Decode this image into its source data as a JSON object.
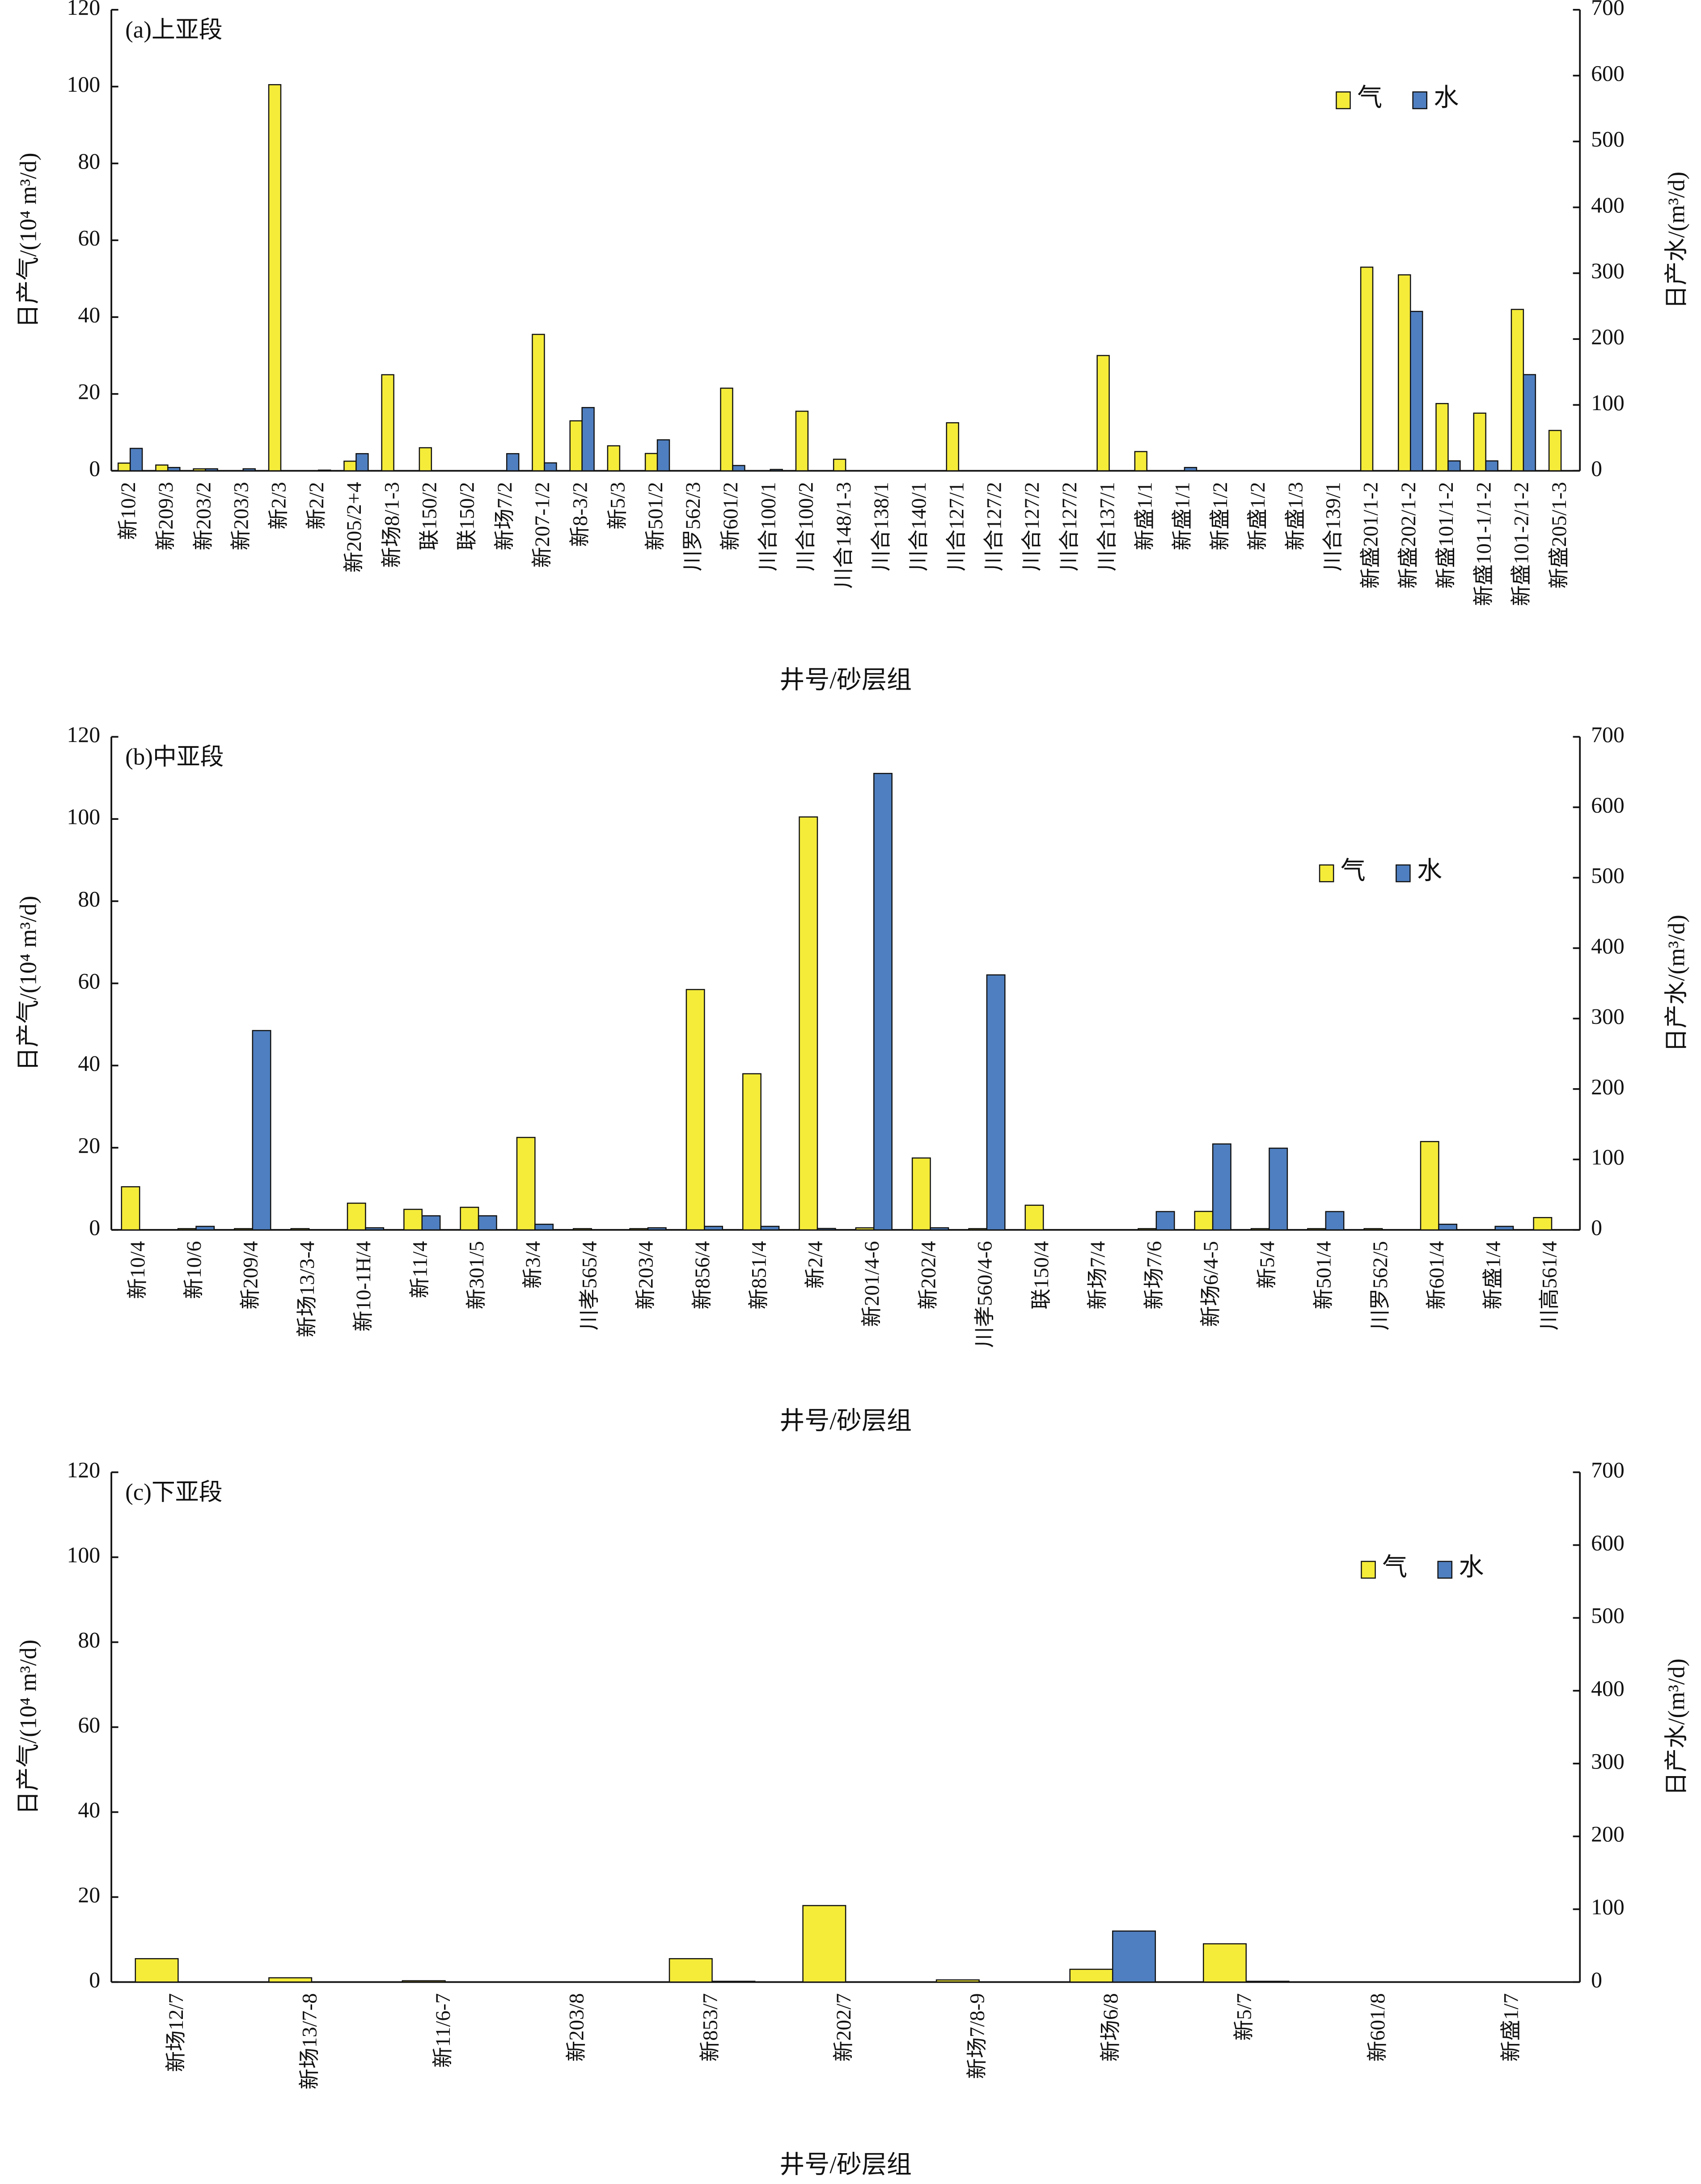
{
  "chart_data": [
    {
      "type": "bar",
      "title": "(a)上亚段",
      "xlabel": "井号/砂层组",
      "ylabel": "日产气/(10⁴ m³/d)",
      "y2label": "日产水/(m³/d)",
      "categories": [
        "新10/2",
        "新209/3",
        "新203/2",
        "新203/3",
        "新2/3",
        "新2/2",
        "新205/2+4",
        "新场8/1-3",
        "联150/2",
        "联150/2",
        "新场7/2",
        "新207-1/2",
        "新8-3/2",
        "新5/3",
        "新501/2",
        "川罗562/3",
        "新601/2",
        "川合100/1",
        "川合100/2",
        "川合148/1-3",
        "川合138/1",
        "川合140/1",
        "川合127/1",
        "川合127/2",
        "川合127/2",
        "川合127/2",
        "川合137/1",
        "新盛1/1",
        "新盛1/1",
        "新盛1/2",
        "新盛1/2",
        "新盛1/3",
        "川合139/1",
        "新盛201/1-2",
        "新盛202/1-2",
        "新盛101/1-2",
        "新盛101-1/1-2",
        "新盛101-2/1-2",
        "新盛205/1-3"
      ],
      "series": [
        {
          "name": "气",
          "color": "#f5ec3a",
          "axis": "y",
          "values": [
            2,
            1.5,
            0.5,
            0,
            100.5,
            0,
            2.5,
            25,
            6,
            0,
            0,
            35.5,
            13,
            6.5,
            4.5,
            0,
            21.5,
            0,
            15.5,
            3,
            0,
            0,
            12.5,
            0,
            0,
            0,
            30,
            5,
            0,
            0,
            0,
            0,
            0,
            53,
            51,
            17.5,
            15,
            42,
            10.5
          ]
        },
        {
          "name": "水",
          "color": "#4f7fc0",
          "axis": "y2",
          "values": [
            34,
            5,
            3,
            3,
            0,
            1,
            26,
            0,
            0,
            0,
            26,
            12,
            96,
            0,
            47,
            0,
            8,
            2,
            0,
            0,
            0,
            0,
            0,
            0,
            0,
            0,
            0,
            0,
            5,
            0,
            0,
            0,
            0,
            0,
            242,
            15,
            15,
            146,
            0
          ]
        }
      ],
      "ylim": [
        0,
        120
      ],
      "yticks": [
        0,
        20,
        40,
        60,
        80,
        100,
        120
      ],
      "y2lim": [
        0,
        700
      ],
      "y2ticks": [
        0,
        100,
        200,
        300,
        400,
        500,
        600,
        700
      ]
    },
    {
      "type": "bar",
      "title": "(b)中亚段",
      "xlabel": "井号/砂层组",
      "ylabel": "日产气/(10⁴ m³/d)",
      "y2label": "日产水/(m³/d)",
      "categories": [
        "新10/4",
        "新10/6",
        "新209/4",
        "新场13/3-4",
        "新10-1H/4",
        "新11/4",
        "新301/5",
        "新3/4",
        "川孝565/4",
        "新203/4",
        "新856/4",
        "新851/4",
        "新2/4",
        "新201/4-6",
        "新202/4",
        "川孝560/4-6",
        "联150/4",
        "新场7/4",
        "新场7/6",
        "新场6/4-5",
        "新5/4",
        "新501/4",
        "川罗562/5",
        "新601/4",
        "新盛1/4",
        "川高561/4"
      ],
      "series": [
        {
          "name": "气",
          "color": "#f5ec3a",
          "axis": "y",
          "values": [
            10.5,
            0.3,
            0.3,
            0.3,
            6.5,
            5,
            5.5,
            22.5,
            0.3,
            0.3,
            58.5,
            38,
            100.5,
            0.5,
            17.5,
            0.3,
            6,
            0,
            0.3,
            4.5,
            0.3,
            0.3,
            0.3,
            21.5,
            0,
            3
          ]
        },
        {
          "name": "水",
          "color": "#4f7fc0",
          "axis": "y2",
          "values": [
            0,
            5,
            283,
            0,
            3,
            20,
            20,
            8,
            0,
            3,
            5,
            5,
            2,
            648,
            3,
            362,
            0,
            0,
            26,
            122,
            116,
            26,
            0,
            8,
            5,
            0
          ]
        }
      ],
      "ylim": [
        0,
        120
      ],
      "yticks": [
        0,
        20,
        40,
        60,
        80,
        100,
        120
      ],
      "y2lim": [
        0,
        700
      ],
      "y2ticks": [
        0,
        100,
        200,
        300,
        400,
        500,
        600,
        700
      ]
    },
    {
      "type": "bar",
      "title": "(c)下亚段",
      "xlabel": "井号/砂层组",
      "ylabel": "日产气/(10⁴ m³/d)",
      "y2label": "日产水/(m³/d)",
      "categories": [
        "新场12/7",
        "新场13/7-8",
        "新11/6-7",
        "新203/8",
        "新853/7",
        "新202/7",
        "新场7/8-9",
        "新场6/8",
        "新5/7",
        "新601/8",
        "新盛1/7"
      ],
      "series": [
        {
          "name": "气",
          "color": "#f5ec3a",
          "axis": "y",
          "values": [
            5.5,
            1,
            0.3,
            0,
            5.5,
            18,
            0.5,
            3,
            9,
            0,
            0
          ]
        },
        {
          "name": "水",
          "color": "#4f7fc0",
          "axis": "y2",
          "values": [
            0,
            0,
            0,
            0,
            1,
            0,
            0,
            70,
            1,
            0,
            0
          ]
        }
      ],
      "ylim": [
        0,
        120
      ],
      "yticks": [
        0,
        20,
        40,
        60,
        80,
        100,
        120
      ],
      "y2lim": [
        0,
        700
      ],
      "y2ticks": [
        0,
        100,
        200,
        300,
        400,
        500,
        600,
        700
      ]
    }
  ]
}
